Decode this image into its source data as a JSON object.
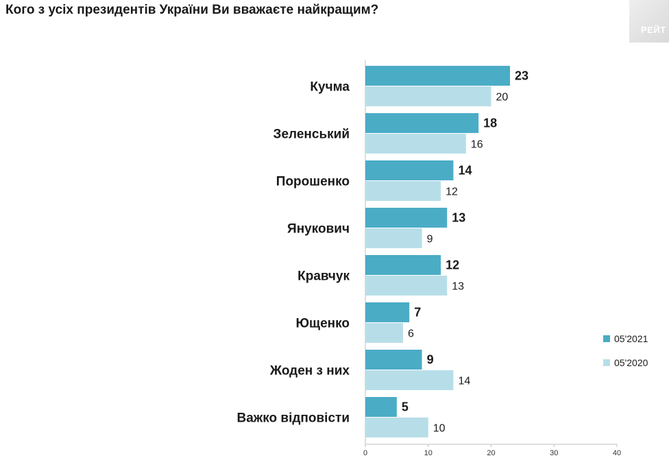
{
  "chart_data": {
    "type": "bar",
    "orientation": "horizontal",
    "title": "Кого з усіх президентів України Ви вважаєте найкращим?",
    "categories": [
      "Кучма",
      "Зеленський",
      "Порошенко",
      "Янукович",
      "Кравчук",
      "Ющенко",
      "Жоден з них",
      "Важко відповісти"
    ],
    "series": [
      {
        "name": "05'2021",
        "values": [
          23,
          18,
          14,
          13,
          12,
          7,
          9,
          5
        ],
        "color": "#4bacc6"
      },
      {
        "name": "05'2020",
        "values": [
          20,
          16,
          12,
          9,
          13,
          6,
          14,
          10
        ],
        "color": "#b7dee8"
      }
    ],
    "xlim": [
      0,
      40
    ],
    "xticks": [
      0,
      10,
      20,
      30,
      40
    ],
    "grid": false,
    "legend_position": "right"
  },
  "logo": {
    "text": "РЕЙТ"
  }
}
